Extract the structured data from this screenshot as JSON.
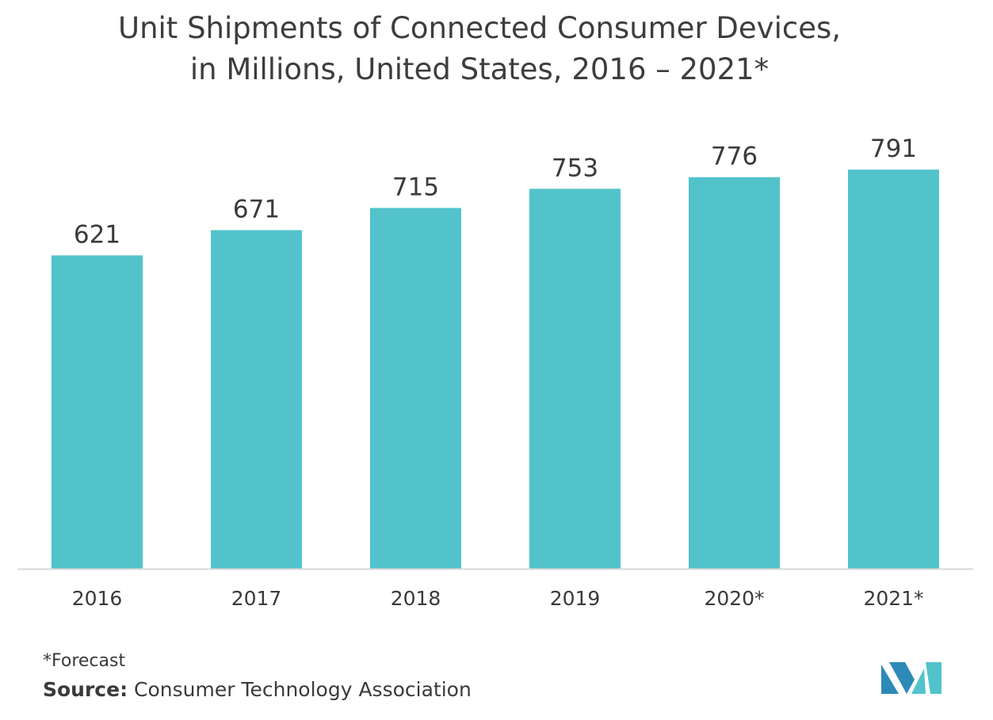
{
  "chart_data": {
    "type": "bar",
    "title_line1": "Unit Shipments of Connected Consumer Devices,",
    "title_line2": "in Millions, United States, 2016 – 2021*",
    "categories": [
      "2016",
      "2017",
      "2018",
      "2019",
      "2020*",
      "2021*"
    ],
    "values": [
      621,
      671,
      715,
      753,
      776,
      791
    ],
    "xlabel": "",
    "ylabel": "",
    "ylim": [
      0,
      900
    ],
    "grid": false,
    "legend": "none",
    "bar_color": "#52c3cb",
    "axis_color": "#d9d9d9"
  },
  "footnote": "*Forecast",
  "source": {
    "label": "Source:",
    "text": "Consumer Technology Association"
  },
  "logo": {
    "icon": "mordor-intelligence-logo",
    "colors": [
      "#2d8ab8",
      "#52c3cb"
    ]
  }
}
